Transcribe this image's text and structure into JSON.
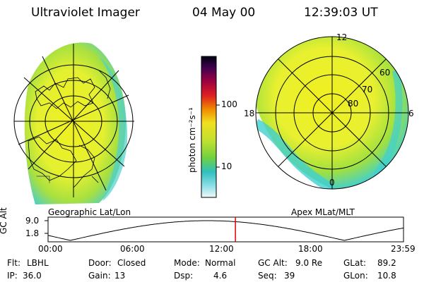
{
  "header": {
    "instrument": "Ultraviolet Imager",
    "date": "04 May 00",
    "time": "12:39:03 UT"
  },
  "colorbar": {
    "label": "photon cm⁻²s⁻¹",
    "ticks": [
      "100",
      "10"
    ]
  },
  "left_panel": {
    "caption": "Geographic Lat/Lon"
  },
  "right_panel": {
    "caption": "Apex MLat/MLT",
    "mlt_labels": [
      "12",
      "18",
      "6",
      "0"
    ],
    "lat_labels": [
      "60",
      "70",
      "80"
    ]
  },
  "altitude_plot": {
    "ylabel": "GC Alt",
    "yticks": [
      "9.0",
      "1.8"
    ],
    "xticks": [
      "00:00",
      "06:00",
      "12:00",
      "18:00",
      "23:59"
    ],
    "current_time_hours": 12.65
  },
  "status": {
    "flt_label": "Flt:",
    "flt_value": "LBHL",
    "ip_label": "IP:",
    "ip_value": "36.0",
    "door_label": "Door:",
    "door_value": "Closed",
    "gain_label": "Gain:",
    "gain_value": "13",
    "mode_label": "Mode:",
    "mode_value": "Normal",
    "dsp_label": "Dsp:",
    "dsp_value": "4.6",
    "gcalt_label": "GC Alt:",
    "gcalt_value": "9.0 Re",
    "seq_label": "Seq:",
    "seq_value": "39",
    "glat_label": "GLat:",
    "glat_value": "89.2",
    "glon_label": "GLon:",
    "glon_value": "10.8"
  },
  "colors": {
    "fill_bright": "#e8f020",
    "fill_green": "#a8e040",
    "fill_cyan": "#40d8d8",
    "marker": "#e00000"
  }
}
